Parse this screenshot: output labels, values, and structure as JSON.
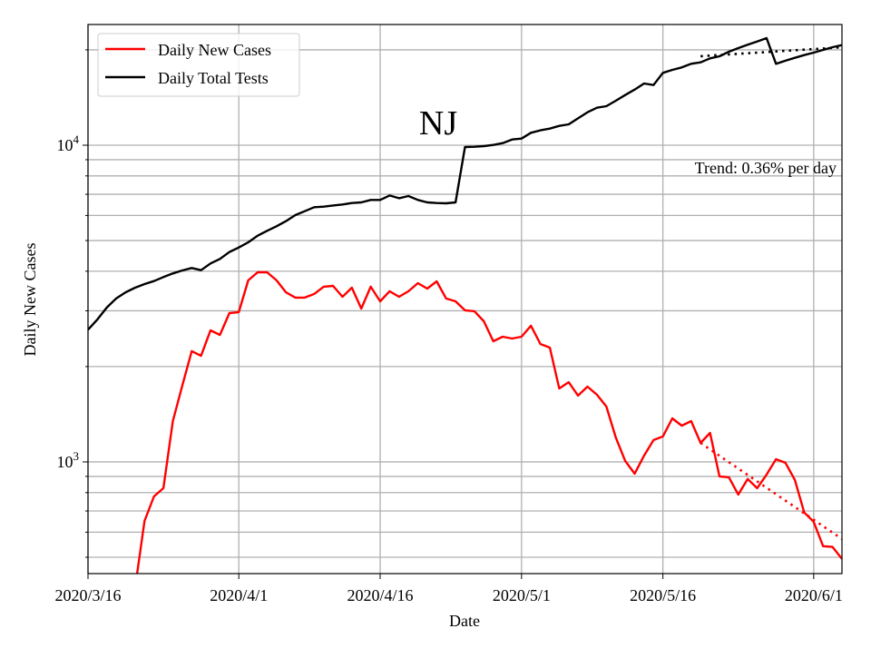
{
  "chart_data": {
    "type": "line",
    "title": "NJ",
    "xlabel": "Date",
    "ylabel": "Daily New Cases",
    "yscale": "log",
    "ylim": [
      444,
      24050
    ],
    "xlim_days": [
      0,
      80
    ],
    "start_date": "2020/3/16",
    "grid": true,
    "legend_position": "top-left",
    "x_ticks": [
      {
        "day": 0,
        "label": "2020/3/16"
      },
      {
        "day": 16,
        "label": "2020/4/1"
      },
      {
        "day": 31,
        "label": "2020/4/16"
      },
      {
        "day": 46,
        "label": "2020/5/1"
      },
      {
        "day": 61,
        "label": "2020/5/16"
      },
      {
        "day": 77,
        "label": "2020/6/1"
      }
    ],
    "y_ticks": [
      {
        "value": 1000,
        "base": "10",
        "exp": "3"
      },
      {
        "value": 10000,
        "base": "10",
        "exp": "4"
      }
    ],
    "annotation": "Trend: 0.36% per day",
    "series": [
      {
        "name": "Daily New Cases",
        "color": "#ff0000",
        "start_day": 5,
        "values": [
          400,
          651,
          778,
          826,
          1345,
          1741,
          2237,
          2163,
          2602,
          2518,
          2951,
          2971,
          3743,
          3970,
          3970,
          3743,
          3434,
          3302,
          3302,
          3390,
          3574,
          3597,
          3322,
          3548,
          3050,
          3574,
          3215,
          3459,
          3322,
          3459,
          3667,
          3525,
          3717,
          3280,
          3215,
          3011,
          2991,
          2780,
          2404,
          2485,
          2453,
          2485,
          2691,
          2357,
          2296,
          1706,
          1786,
          1619,
          1729,
          1630,
          1496,
          1195,
          1007,
          918,
          1047,
          1172,
          1203,
          1372,
          1302,
          1345,
          1148,
          1235,
          900,
          894,
          789,
          883,
          826,
          912,
          1020,
          994,
          877,
          692,
          647,
          542,
          539,
          494
        ],
        "trend": {
          "days": [
            65,
            80
          ],
          "values": [
            1148,
            571
          ]
        }
      },
      {
        "name": "Daily Total Tests",
        "color": "#000000",
        "start_day": 0,
        "values": [
          2614,
          2818,
          3076,
          3286,
          3434,
          3549,
          3644,
          3725,
          3833,
          3936,
          4023,
          4095,
          4031,
          4232,
          4374,
          4600,
          4755,
          4935,
          5181,
          5366,
          5546,
          5756,
          6016,
          6190,
          6370,
          6398,
          6454,
          6497,
          6568,
          6598,
          6715,
          6715,
          6940,
          6804,
          6910,
          6715,
          6598,
          6568,
          6555,
          6598,
          9869,
          9890,
          9934,
          10020,
          10155,
          10425,
          10495,
          10945,
          11140,
          11285,
          11510,
          11640,
          12160,
          12710,
          13130,
          13280,
          13815,
          14400,
          14985,
          15660,
          15490,
          16920,
          17290,
          17600,
          18070,
          18270,
          18800,
          19090,
          19730,
          20260,
          20760,
          21260,
          21780,
          18070,
          18480,
          18880,
          19260,
          19600,
          19990,
          20390,
          20710
        ],
        "trend": {
          "days": [
            65,
            80
          ],
          "values": [
            19100,
            20380
          ]
        }
      }
    ]
  }
}
